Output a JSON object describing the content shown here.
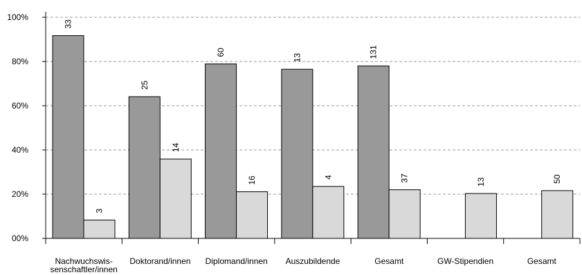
{
  "chart_data": {
    "type": "bar",
    "categories": [
      "Nachwuchswis-senschaftler/innen",
      "Doktorand/innen",
      "Diplomand/innen",
      "Auszubildende",
      "Gesamt",
      "GW-Stipendien",
      "Gesamt"
    ],
    "category_lines": [
      [
        "Nachwuchswis-",
        "senschaftler/innen"
      ],
      [
        "Doktorand/innen"
      ],
      [
        "Diplomand/innen"
      ],
      [
        "Auszubildende"
      ],
      [
        "Gesamt"
      ],
      [
        "GW-Stipendien"
      ],
      [
        "Gesamt"
      ]
    ],
    "series": [
      {
        "color": "#999999",
        "values": [
          91.7,
          64.1,
          78.9,
          76.5,
          78.0,
          null,
          null
        ],
        "labels": [
          "33",
          "25",
          "60",
          "13",
          "131",
          "",
          ""
        ]
      },
      {
        "color": "#d9d9d9",
        "values": [
          8.3,
          35.9,
          21.1,
          23.5,
          22.0,
          20.3,
          21.6
        ],
        "labels": [
          "3",
          "14",
          "16",
          "4",
          "37",
          "13",
          "50"
        ]
      }
    ],
    "yticks": [
      "00%",
      "20%",
      "40%",
      "60%",
      "80%",
      "100%"
    ],
    "ylim": [
      0,
      100
    ],
    "grid": true,
    "title": "",
    "xlabel": "",
    "ylabel": ""
  }
}
